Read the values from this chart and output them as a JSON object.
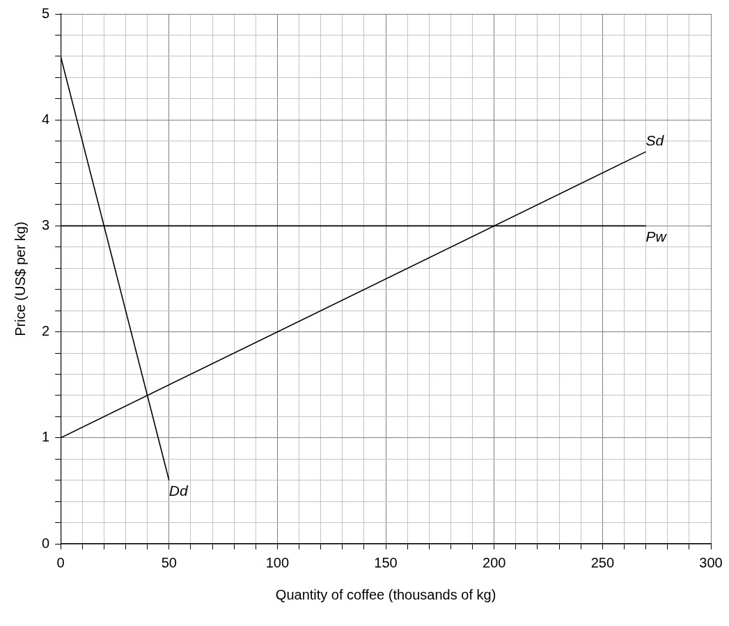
{
  "chart_data": {
    "type": "line",
    "xlabel": "Quantity of coffee (thousands of kg)",
    "ylabel": "Price (US$ per kg)",
    "xlim": [
      0,
      300
    ],
    "ylim": [
      0,
      5
    ],
    "xticks": [
      0,
      {
        "value": 10,
        "label": null
      },
      {
        "value": 20,
        "label": null
      },
      {
        "value": 30,
        "label": null
      },
      {
        "value": 40,
        "label": null
      },
      50,
      {
        "value": 60,
        "label": null
      },
      {
        "value": 70,
        "label": null
      },
      {
        "value": 80,
        "label": null
      },
      {
        "value": 90,
        "label": null
      },
      100,
      {
        "value": 110,
        "label": null
      },
      {
        "value": 120,
        "label": null
      },
      {
        "value": 130,
        "label": null
      },
      {
        "value": 140,
        "label": null
      },
      150,
      {
        "value": 160,
        "label": null
      },
      {
        "value": 170,
        "label": null
      },
      {
        "value": 180,
        "label": null
      },
      {
        "value": 190,
        "label": null
      },
      200,
      {
        "value": 210,
        "label": null
      },
      {
        "value": 220,
        "label": null
      },
      {
        "value": 230,
        "label": null
      },
      {
        "value": 240,
        "label": null
      },
      250,
      {
        "value": 260,
        "label": null
      },
      {
        "value": 270,
        "label": null
      },
      {
        "value": 280,
        "label": null
      },
      {
        "value": 290,
        "label": null
      },
      300
    ],
    "yticks": [
      0,
      {
        "value": 0.2,
        "label": null
      },
      {
        "value": 0.4,
        "label": null
      },
      {
        "value": 0.6,
        "label": null
      },
      {
        "value": 0.8,
        "label": null
      },
      1,
      {
        "value": 1.2,
        "label": null
      },
      {
        "value": 1.4,
        "label": null
      },
      {
        "value": 1.6,
        "label": null
      },
      {
        "value": 1.8,
        "label": null
      },
      2,
      {
        "value": 2.2,
        "label": null
      },
      {
        "value": 2.4,
        "label": null
      },
      {
        "value": 2.6,
        "label": null
      },
      {
        "value": 2.8,
        "label": null
      },
      3,
      {
        "value": 3.2,
        "label": null
      },
      {
        "value": 3.4,
        "label": null
      },
      {
        "value": 3.6,
        "label": null
      },
      {
        "value": 3.8,
        "label": null
      },
      4,
      {
        "value": 4.2,
        "label": null
      },
      {
        "value": 4.4,
        "label": null
      },
      {
        "value": 4.6,
        "label": null
      },
      {
        "value": 4.8,
        "label": null
      },
      5
    ],
    "grid": true,
    "legend": false,
    "marker": "none",
    "line_style": "solid",
    "series": [
      {
        "name": "Sd",
        "color": "#000000",
        "x": [
          0,
          270
        ],
        "values": [
          1,
          3.7
        ]
      },
      {
        "name": "Pw",
        "color": "#000000",
        "x": [
          0,
          270
        ],
        "values": [
          3,
          3
        ]
      },
      {
        "name": "Dd",
        "color": "#000000",
        "x": [
          0,
          50
        ],
        "values": [
          4.6,
          0.6
        ]
      }
    ]
  }
}
